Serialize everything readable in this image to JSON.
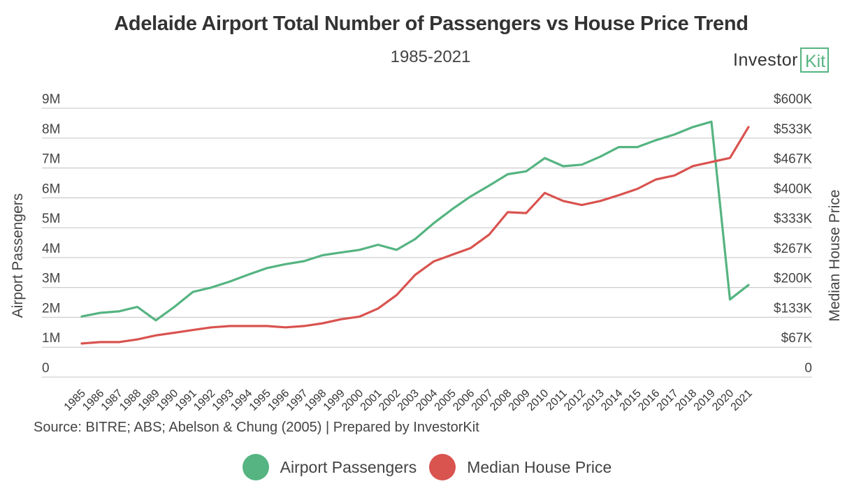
{
  "header": {
    "title": "Adelaide Airport Total Number of Passengers vs House Price Trend",
    "subtitle": "1985-2021",
    "logo_word": "Investor",
    "logo_box": "Kit"
  },
  "source": "Source: BITRE; ABS; Abelson & Chung (2005) | Prepared by InvestorKit",
  "colors": {
    "passengers": "#55b481",
    "house_price": "#d9534f",
    "grid": "#cfcfcf"
  },
  "chart_data": {
    "type": "line",
    "title": "Adelaide Airport Total Number of Passengers vs House Price Trend",
    "subtitle": "1985-2021",
    "x": [
      "1985",
      "1986",
      "1987",
      "1988",
      "1989",
      "1990",
      "1991",
      "1992",
      "1993",
      "1994",
      "1995",
      "1996",
      "1997",
      "1998",
      "1999",
      "2000",
      "2001",
      "2002",
      "2003",
      "2004",
      "2005",
      "2006",
      "2007",
      "2008",
      "2009",
      "2010",
      "2011",
      "2012",
      "2013",
      "2014",
      "2015",
      "2016",
      "2017",
      "2018",
      "2019",
      "2020",
      "2021"
    ],
    "y_left": {
      "label": "Airport Passengers",
      "ylim": [
        0,
        9000000
      ],
      "ticks": [
        0,
        1000000,
        2000000,
        3000000,
        4000000,
        5000000,
        6000000,
        7000000,
        8000000,
        9000000
      ],
      "tick_labels": [
        "0",
        "1M",
        "2M",
        "3M",
        "4M",
        "5M",
        "6M",
        "7M",
        "8M",
        "9M"
      ]
    },
    "y_right": {
      "label": "Median House Price",
      "ylim": [
        0,
        600000
      ],
      "tick_labels": [
        "0",
        "$67K",
        "$133K",
        "$200K",
        "$267K",
        "$333K",
        "$400K",
        "$467K",
        "$533K",
        "$600K"
      ]
    },
    "series": [
      {
        "name": "Airport Passengers",
        "axis": "left",
        "color": "#55b481",
        "values": [
          2030000,
          2150000,
          2200000,
          2350000,
          1900000,
          2350000,
          2850000,
          3000000,
          3200000,
          3430000,
          3650000,
          3780000,
          3880000,
          4080000,
          4170000,
          4260000,
          4430000,
          4260000,
          4620000,
          5150000,
          5620000,
          6050000,
          6410000,
          6790000,
          6890000,
          7330000,
          7060000,
          7110000,
          7380000,
          7700000,
          7700000,
          7930000,
          8120000,
          8370000,
          8550000,
          2600000,
          3080000
        ]
      },
      {
        "name": "Median House Price",
        "axis": "right",
        "color": "#d9534f",
        "values": [
          75000,
          78000,
          78000,
          84000,
          93000,
          99000,
          105000,
          111000,
          114000,
          114000,
          114000,
          111000,
          114000,
          120000,
          129000,
          135000,
          153000,
          183000,
          228000,
          258000,
          273000,
          288000,
          318000,
          368000,
          366000,
          411000,
          393000,
          384000,
          393000,
          406000,
          420000,
          441000,
          450000,
          471000,
          480000,
          489000,
          558000
        ]
      }
    ],
    "grid": true,
    "legend": "bottom-center"
  }
}
